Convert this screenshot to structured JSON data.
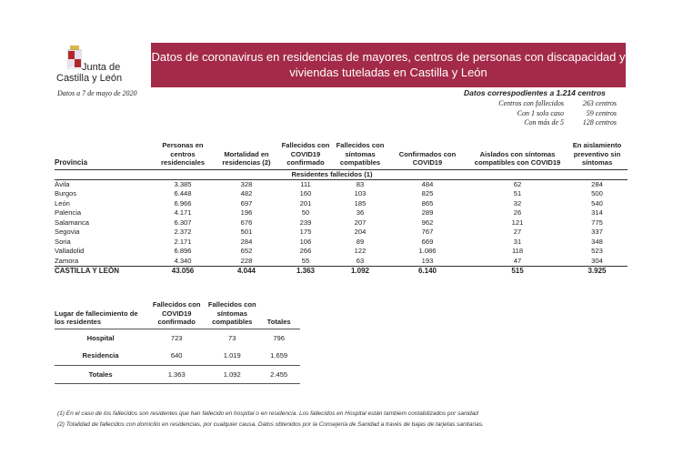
{
  "header": {
    "logo_line1": "Junta de",
    "logo_line2": "Castilla y León",
    "title": "Datos de coronavirus en residencias de mayores, centros de personas con discapacidad y viviendas tuteladas en Castilla y León",
    "date": "Datos a 7 de mayo de 2020",
    "brand_color": "#a32a48"
  },
  "centros": {
    "heading": "Datos correspodientes a 1.214 centros",
    "rows": [
      {
        "label": "Centros con fallecidos",
        "value": "263 centros"
      },
      {
        "label": "Con 1 solo caso",
        "value": "59 centros"
      },
      {
        "label": "Con más de 5",
        "value": "128 centros"
      }
    ]
  },
  "main_table": {
    "columns": [
      "Provincia",
      "Personas en centros residenciales",
      "Mortalidad en residencias (2)",
      "Fallecidos con COVID19 confirmado",
      "Fallecidos con síntomas compatibles",
      "Confirmados con COVID19",
      "Aislados con síntomas compatibles con COVID19",
      "En aislamiento preventivo sin síntomas"
    ],
    "subheader": "Residentes fallecidos (1)",
    "rows": [
      [
        "Ávila",
        "3.385",
        "328",
        "111",
        "83",
        "484",
        "62",
        "284"
      ],
      [
        "Burgos",
        "6.448",
        "482",
        "160",
        "103",
        "825",
        "51",
        "500"
      ],
      [
        "León",
        "6.966",
        "697",
        "201",
        "185",
        "865",
        "32",
        "540"
      ],
      [
        "Palencia",
        "4.171",
        "196",
        "50",
        "36",
        "289",
        "26",
        "314"
      ],
      [
        "Salamanca",
        "6.307",
        "676",
        "239",
        "207",
        "962",
        "121",
        "775"
      ],
      [
        "Segovia",
        "2.372",
        "501",
        "175",
        "204",
        "767",
        "27",
        "337"
      ],
      [
        "Soria",
        "2.171",
        "284",
        "106",
        "89",
        "669",
        "31",
        "348"
      ],
      [
        "Valladolid",
        "6.896",
        "652",
        "266",
        "122",
        "1.086",
        "118",
        "523"
      ],
      [
        "Zamora",
        "4.340",
        "228",
        "55",
        "63",
        "193",
        "47",
        "304"
      ]
    ],
    "total": [
      "CASTILLA Y LEÓN",
      "43.056",
      "4.044",
      "1.363",
      "1.092",
      "6.140",
      "515",
      "3.925"
    ]
  },
  "place_table": {
    "columns": [
      "Lugar de fallecimiento de los residentes",
      "Fallecidos con COVID19 confirmado",
      "Fallecidos con síntomas compatibles",
      "Totales"
    ],
    "rows": [
      [
        "Hospital",
        "723",
        "73",
        "796"
      ],
      [
        "Residencia",
        "640",
        "1.019",
        "1.659"
      ]
    ],
    "total": [
      "Totales",
      "1.363",
      "1.092",
      "2.455"
    ]
  },
  "footnotes": [
    "(1) En el caso de los fallecidos son residentes que han fallecido en hospital o en residencia. Los fallecidos en Hospital están tambiem contabilizados por sanidad",
    "(2) Totalidad de fallecidos con domicilio en residencias, por cualquier causa. Datos obtenidos por la Consejería de Sanidad a través de bajas de tarjetas sanitarias."
  ]
}
